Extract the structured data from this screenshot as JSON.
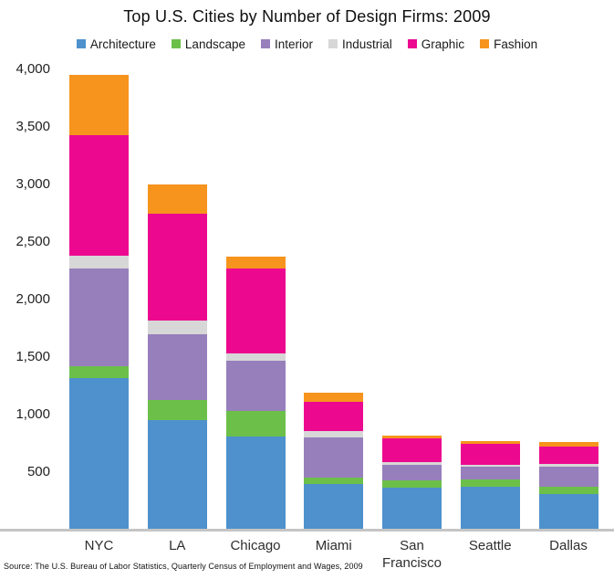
{
  "title": "Top U.S. Cities by Number of Design Firms: 2009",
  "source_note": "Source: The U.S. Bureau of Labor Statistics, Quarterly Census of Employment and Wages, 2009",
  "colors": {
    "architecture": "#4E91CD",
    "landscape": "#6CC04A",
    "interior": "#977FBC",
    "industrial": "#D7D7D7",
    "graphic": "#EC098F",
    "fashion": "#F6941D",
    "axis_line": "#C5C5C5",
    "text": "#1A1A1A",
    "background": "#FFFFFF"
  },
  "chart_data": {
    "type": "bar",
    "stacked": true,
    "title": "Top U.S. Cities by Number of Design Firms: 2009",
    "xlabel": "",
    "ylabel": "",
    "ylim": [
      0,
      4000
    ],
    "yticks": [
      500,
      1000,
      1500,
      2000,
      2500,
      3000,
      3500,
      4000
    ],
    "grid": false,
    "legend_position": "top",
    "categories": [
      "NYC",
      "LA",
      "Chicago",
      "Miami",
      "San Francisco",
      "Seattle",
      "Dallas"
    ],
    "series": [
      {
        "name": "Architecture",
        "color": "#4E91CD",
        "values": [
          1320,
          950,
          810,
          400,
          365,
          370,
          310
        ]
      },
      {
        "name": "Landscape",
        "color": "#6CC04A",
        "values": [
          100,
          175,
          225,
          55,
          60,
          65,
          65
        ]
      },
      {
        "name": "Interior",
        "color": "#977FBC",
        "values": [
          850,
          575,
          435,
          350,
          140,
          110,
          170
        ]
      },
      {
        "name": "Industrial",
        "color": "#D7D7D7",
        "values": [
          115,
          120,
          60,
          55,
          25,
          20,
          25
        ]
      },
      {
        "name": "Graphic",
        "color": "#EC098F",
        "values": [
          1040,
          930,
          740,
          255,
          205,
          180,
          155
        ]
      },
      {
        "name": "Fashion",
        "color": "#F6941D",
        "values": [
          530,
          250,
          100,
          75,
          25,
          25,
          35
        ]
      }
    ],
    "totals": [
      3955,
      3000,
      2370,
      1190,
      820,
      770,
      760
    ]
  }
}
